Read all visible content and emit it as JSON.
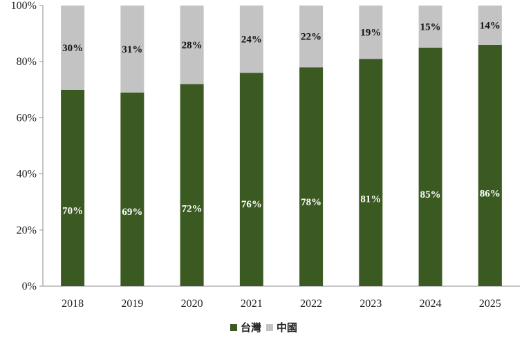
{
  "chart_data": {
    "type": "bar",
    "stacked": true,
    "percent": true,
    "categories": [
      "2018",
      "2019",
      "2020",
      "2021",
      "2022",
      "2023",
      "2024",
      "2025"
    ],
    "series": [
      {
        "name": "台灣",
        "values": [
          70,
          69,
          72,
          76,
          78,
          81,
          85,
          86
        ],
        "labels": [
          "70%",
          "69%",
          "72%",
          "76%",
          "78%",
          "81%",
          "85%",
          "86%"
        ],
        "color": "#3b5a22",
        "label_color": "#ffffff"
      },
      {
        "name": "中國",
        "values": [
          30,
          31,
          28,
          24,
          22,
          19,
          15,
          14
        ],
        "labels": [
          "30%",
          "31%",
          "28%",
          "24%",
          "22%",
          "19%",
          "15%",
          "14%"
        ],
        "color": "#c3c3c3",
        "label_color": "#111111"
      }
    ],
    "yticks": [
      "0%",
      "20%",
      "40%",
      "60%",
      "80%",
      "100%"
    ],
    "ylim": [
      0,
      100
    ],
    "grid": false,
    "legend_position": "bottom"
  }
}
